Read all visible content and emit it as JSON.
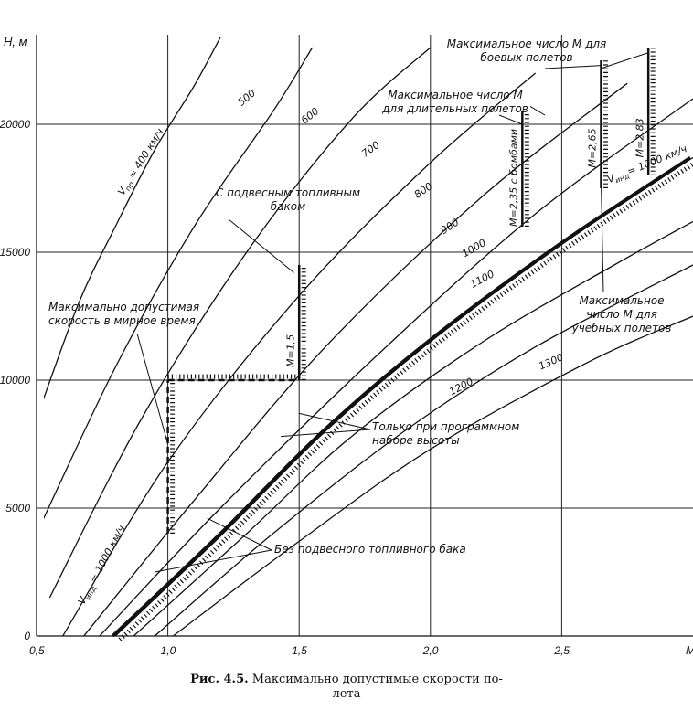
{
  "chart_data": {
    "type": "line",
    "title": "",
    "xlabel": "M",
    "ylabel": "H, м",
    "xlim": [
      0.5,
      3.0
    ],
    "ylim": [
      0,
      23500
    ],
    "grid": true,
    "x_ticks": [
      {
        "value": 0.5,
        "label": "0,5"
      },
      {
        "value": 1.0,
        "label": "1,0"
      },
      {
        "value": 1.5,
        "label": "1,5"
      },
      {
        "value": 2.0,
        "label": "2,0"
      },
      {
        "value": 2.5,
        "label": "2,5"
      },
      {
        "value": 3.0,
        "label": "M"
      }
    ],
    "y_ticks": [
      {
        "value": 0,
        "label": "0"
      },
      {
        "value": 5000,
        "label": "5000"
      },
      {
        "value": 10000,
        "label": "10000"
      },
      {
        "value": 15000,
        "label": "15000"
      },
      {
        "value": 20000,
        "label": "20000"
      }
    ],
    "series": [
      {
        "name": "V_пр = 400 км/ч",
        "label": "V_пр = 400 км/ч",
        "x": [
          0.5,
          0.66,
          0.8,
          0.95,
          1.1,
          1.2
        ],
        "y": [
          8500,
          13000,
          16000,
          19000,
          21500,
          23400
        ]
      },
      {
        "name": "500",
        "label": "500",
        "x": [
          0.5,
          0.8,
          1.1,
          1.4,
          1.55
        ],
        "y": [
          4000,
          10500,
          16000,
          20500,
          23000
        ]
      },
      {
        "name": "600",
        "label": "600",
        "x": [
          0.55,
          0.9,
          1.3,
          1.7,
          2.0
        ],
        "y": [
          1500,
          8500,
          15000,
          20200,
          23000
        ]
      },
      {
        "name": "700",
        "label": "700",
        "x": [
          0.6,
          1.0,
          1.5,
          2.0,
          2.4
        ],
        "y": [
          0,
          6800,
          13300,
          18500,
          22000
        ]
      },
      {
        "name": "800",
        "label": "800",
        "x": [
          0.68,
          1.1,
          1.6,
          2.2,
          2.75
        ],
        "y": [
          0,
          5300,
          11300,
          17200,
          21600
        ]
      },
      {
        "name": "900",
        "label": "900",
        "x": [
          0.74,
          1.2,
          1.8,
          2.4,
          3.0
        ],
        "y": [
          0,
          5000,
          11000,
          16500,
          21000
        ]
      },
      {
        "name": "1000",
        "label": "1000",
        "x": [
          0.8,
          1.2,
          1.6,
          2.0,
          2.5,
          3.0
        ],
        "y": [
          0,
          3900,
          8000,
          11500,
          15300,
          18700
        ]
      },
      {
        "name": "1100",
        "label": "1100",
        "x": [
          0.87,
          1.3,
          1.7,
          2.2,
          2.7,
          3.0
        ],
        "y": [
          0,
          4000,
          7800,
          11500,
          14500,
          16200
        ]
      },
      {
        "name": "1200",
        "label": "1200",
        "x": [
          0.95,
          1.4,
          1.9,
          2.4,
          3.0
        ],
        "y": [
          0,
          4000,
          8000,
          11300,
          14500
        ]
      },
      {
        "name": "1300",
        "label": "1300",
        "x": [
          1.02,
          1.5,
          2.0,
          2.6,
          3.0
        ],
        "y": [
          0,
          3700,
          7300,
          10700,
          12500
        ]
      }
    ],
    "limits": [
      {
        "name": "M = 1,5",
        "label": "M = 1,5",
        "x": [
          1.5,
          1.5
        ],
        "y": [
          10000,
          14500
        ]
      },
      {
        "name": "M = 2,35 с бомбами",
        "label": "M = 2,35 с бомбами",
        "x": [
          2.35,
          2.35
        ],
        "y": [
          16000,
          20500
        ]
      },
      {
        "name": "M = 2,65",
        "label": "M = 2,65",
        "x": [
          2.65,
          2.65
        ],
        "y": [
          17500,
          22500
        ]
      },
      {
        "name": "M = 2,83",
        "label": "M = 2,83",
        "x": [
          2.83,
          2.83
        ],
        "y": [
          18000,
          23000
        ]
      },
      {
        "name": "10000 м",
        "x": [
          1.0,
          1.5
        ],
        "y": [
          10000,
          10000
        ]
      },
      {
        "name": "M = 1,0",
        "x": [
          1.0,
          1.0
        ],
        "y": [
          4000,
          10000
        ]
      }
    ],
    "annotations": [
      "V_инд = 1000 км/ч",
      "V_инд = 1000 км/ч",
      "Максимальное число M для боевых полетов",
      "Максимальное число M для длительных полетов",
      "С подвесным топливным баком",
      "Максимально допустимая скорость в мирное время",
      "Максимальное число M для учебных полетов",
      "Только при программном наборе высоты",
      "Без подвесного топливного бака"
    ]
  },
  "labels": {
    "v400": [
      "V",
      "пр",
      " = 400 км/ч"
    ],
    "vind_bottom": [
      "V",
      "инд",
      " = 1000 км/ч"
    ],
    "vind_top": [
      "V",
      "инд",
      "= 1000 км/ч"
    ],
    "combat": [
      "Максимальное число M для",
      "боевых полетов"
    ],
    "long_flight": [
      "Максимальное число M",
      "для длительных полетов"
    ],
    "drop_tank": [
      "С подвесным топливным",
      "баком"
    ],
    "peacetime": [
      "Максимально допустимая",
      "скорость в мирное время"
    ],
    "training": [
      "Максимальное",
      "число M для",
      "учебных полетов"
    ],
    "program_climb": [
      "Только при программном",
      "наборе высоты"
    ],
    "no_tank": "Без подвесного топливного бака",
    "m15": "M=1,5",
    "m235": "M=2,35 с бомбами",
    "m265": "M=2,65",
    "m283": "M=2,83"
  },
  "caption": {
    "label": "Рис. 4.5.",
    "text": "Максимально допустимые скорости по-",
    "text2": "лета"
  }
}
